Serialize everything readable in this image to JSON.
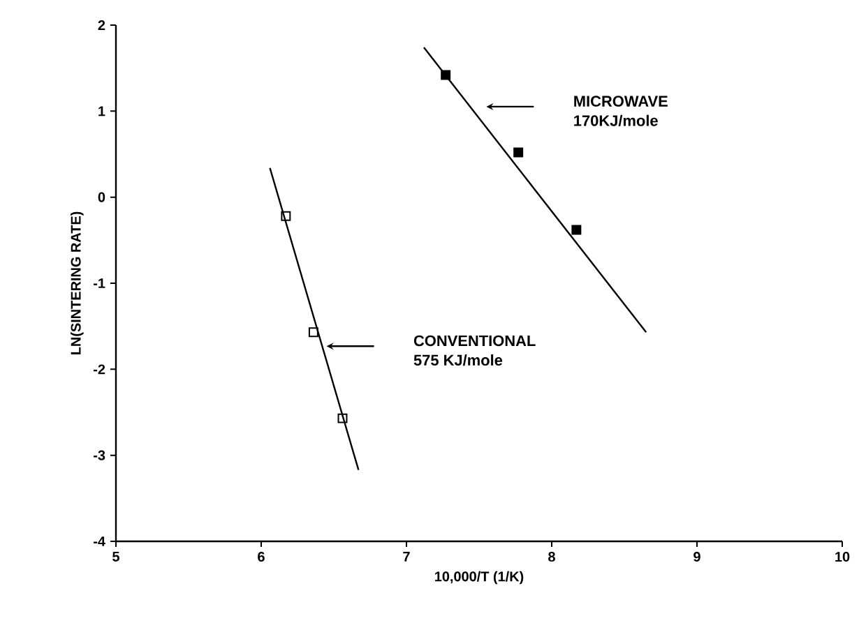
{
  "chart_data": {
    "type": "scatter",
    "xlabel": "10,000/T (1/K)",
    "ylabel": "LN(SINTERING RATE)",
    "xlim": [
      5,
      10
    ],
    "ylim": [
      -4,
      2
    ],
    "xticks": [
      5,
      6,
      7,
      8,
      9,
      10
    ],
    "yticks": [
      -4,
      -3,
      -2,
      -1,
      0,
      1,
      2
    ],
    "grid": false,
    "legend": false,
    "series": [
      {
        "name": "MICROWAVE",
        "color": "#000000",
        "marker": "square",
        "x": [
          7.27,
          7.77,
          8.17
        ],
        "values": [
          1.42,
          0.52,
          -0.38
        ]
      },
      {
        "name": "CONVENTIONAL",
        "color": "#000000",
        "marker": "square",
        "x": [
          6.17,
          6.36,
          6.56
        ],
        "values": [
          -0.22,
          -1.57,
          -2.57
        ]
      },
      {
        "type": "line",
        "color": "#000000",
        "marker": "none",
        "x": [
          7.12,
          8.65
        ],
        "values": [
          1.74,
          -1.57
        ]
      },
      {
        "type": "line",
        "color": "#000000",
        "marker": "none",
        "x": [
          6.06,
          6.67
        ],
        "values": [
          0.34,
          -3.17
        ]
      }
    ],
    "annotations": [
      "170KJ/mole",
      "575 KJ/mole"
    ]
  }
}
